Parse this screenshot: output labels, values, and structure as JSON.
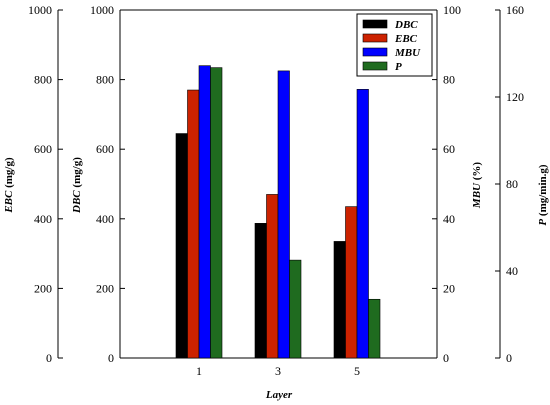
{
  "chart_data": {
    "type": "bar",
    "categories": [
      "1",
      "3",
      "5"
    ],
    "xlabel": "Layer",
    "series": [
      {
        "name": "DBC",
        "values": [
          645,
          387,
          335
        ],
        "color": "#000000",
        "axis": "DBC"
      },
      {
        "name": "EBC",
        "values": [
          770,
          470,
          435
        ],
        "color": "#cc2200",
        "axis": "EBC"
      },
      {
        "name": "MBU",
        "values": [
          84,
          82.5,
          77.2
        ],
        "color": "#0000ff",
        "axis": "MBU"
      },
      {
        "name": "P",
        "values": [
          133.5,
          45,
          27
        ],
        "color": "#1f6b1f",
        "axis": "P"
      }
    ],
    "axes": {
      "EBC": {
        "label": "EBC (mg/g)",
        "ylim": [
          0,
          1000
        ],
        "ticks": [
          "0",
          "200",
          "400",
          "600",
          "800",
          "1000"
        ]
      },
      "DBC": {
        "label": "DBC (mg/g)",
        "ylim": [
          0,
          1000
        ],
        "ticks": [
          "0",
          "200",
          "400",
          "600",
          "800",
          "1000"
        ]
      },
      "MBU": {
        "label": "MBU (%)",
        "ylim": [
          0,
          100
        ],
        "ticks": [
          "0",
          "20",
          "40",
          "60",
          "80",
          "100"
        ]
      },
      "P": {
        "label": "P (mg/min.g)",
        "ylim": [
          0,
          160
        ],
        "ticks": [
          "0",
          "40",
          "80",
          "120",
          "160"
        ]
      }
    },
    "legend": {
      "placement": "top-right"
    },
    "grid": false
  }
}
